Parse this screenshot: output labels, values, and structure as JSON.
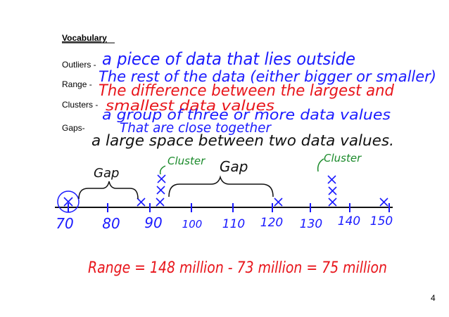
{
  "heading": "Vocabulary",
  "terms": [
    {
      "term": "Outliers -",
      "definition": [
        "a piece of data that lies outside",
        "The rest of the data (either bigger or smaller)"
      ]
    },
    {
      "term": "Range -",
      "definition": [
        "The difference between the largest and",
        "smallest data values"
      ]
    },
    {
      "term": "Clusters -",
      "definition": [
        "a group of three or more data values",
        "That are close together"
      ]
    },
    {
      "term": "Gaps-",
      "definition": [
        "a large space between two data values."
      ]
    }
  ],
  "number_line": {
    "labels": [
      "70",
      "80",
      "90",
      "100",
      "110",
      "120",
      "130",
      "140",
      "150"
    ],
    "annotations": [
      "Gap",
      "Cluster",
      "Gap",
      "Cluster"
    ]
  },
  "work": "Range = 148 million - 73 million = 75 million",
  "page_number": "4"
}
